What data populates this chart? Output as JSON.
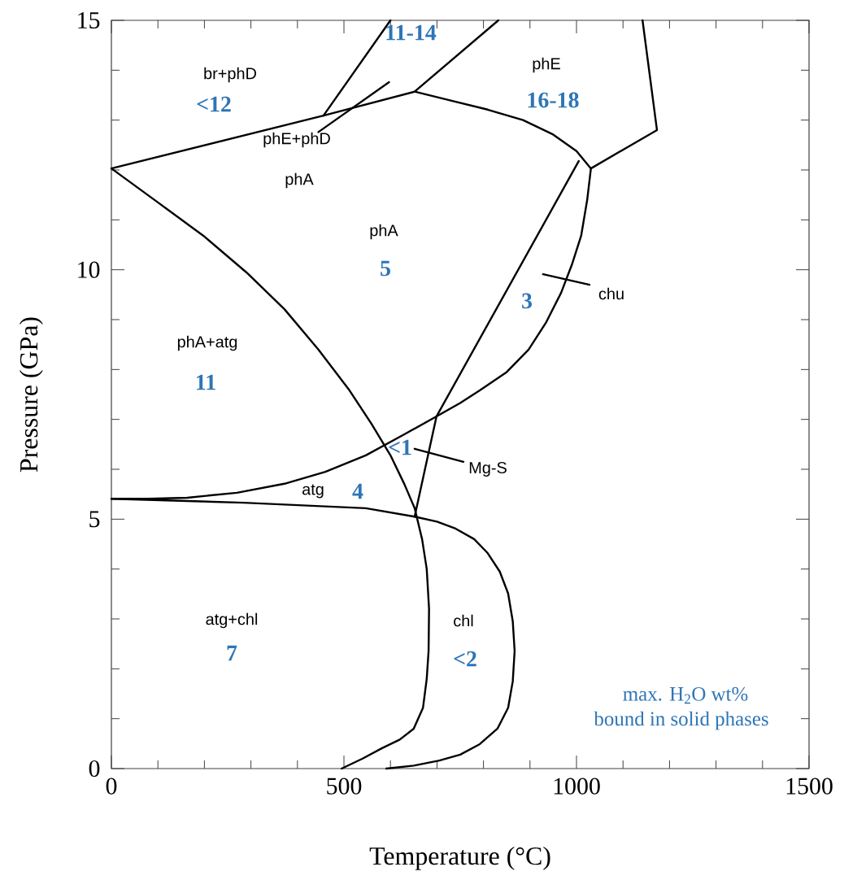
{
  "chart_data": {
    "type": "line",
    "xlabel": "Temperature (°C)",
    "ylabel": "Pressure (GPa)",
    "xlim": [
      0,
      1500
    ],
    "ylim": [
      0,
      15
    ],
    "xticks": [
      0,
      {
        "value": 100,
        "label": null
      },
      {
        "value": 200,
        "label": null
      },
      {
        "value": 300,
        "label": null
      },
      {
        "value": 400,
        "label": null
      },
      500,
      {
        "value": 600,
        "label": null
      },
      {
        "value": 700,
        "label": null
      },
      {
        "value": 800,
        "label": null
      },
      {
        "value": 900,
        "label": null
      },
      1000,
      {
        "value": 1100,
        "label": null
      },
      {
        "value": 1200,
        "label": null
      },
      {
        "value": 1300,
        "label": null
      },
      {
        "value": 1400,
        "label": null
      },
      1500
    ],
    "yticks": [
      0,
      {
        "value": 1,
        "label": null
      },
      {
        "value": 2,
        "label": null
      },
      {
        "value": 3,
        "label": null
      },
      {
        "value": 4,
        "label": null
      },
      5,
      {
        "value": 6,
        "label": null
      },
      {
        "value": 7,
        "label": null
      },
      {
        "value": 8,
        "label": null
      },
      {
        "value": 9,
        "label": null
      },
      10,
      {
        "value": 11,
        "label": null
      },
      {
        "value": 12,
        "label": null
      },
      {
        "value": 13,
        "label": null
      },
      {
        "value": 14,
        "label": null
      },
      15
    ],
    "series": [
      {
        "color": "#000000",
        "x": [
          0,
          456,
          652,
          735,
          809,
          885,
          948,
          1000,
          1031,
          1173,
          1142
        ],
        "values": [
          12.03,
          13.09,
          13.57,
          13.38,
          13.21,
          13.0,
          12.72,
          12.38,
          12.03,
          12.8,
          15
        ]
      },
      {
        "color": "#000000",
        "x": [
          456,
          600
        ],
        "values": [
          13.09,
          15
        ]
      },
      {
        "color": "#000000",
        "x": [
          652,
          832
        ],
        "values": [
          13.57,
          15
        ]
      },
      {
        "color": "#000000",
        "x": [
          1005,
          699,
          652
        ],
        "values": [
          12.18,
          7.06,
          5.05
        ]
      },
      {
        "color": "#000000",
        "x": [
          1031,
          1023,
          1010,
          990,
          967,
          935,
          897,
          850,
          792,
          750,
          699,
          630,
          547,
          460,
          372,
          270,
          163,
          80,
          0
        ],
        "values": [
          12.03,
          11.4,
          10.68,
          10.1,
          9.54,
          8.95,
          8.4,
          7.95,
          7.58,
          7.33,
          7.06,
          6.7,
          6.28,
          5.95,
          5.71,
          5.53,
          5.43,
          5.41,
          5.41
        ]
      },
      {
        "color": "#000000",
        "x": [
          0,
          100,
          198,
          290,
          372,
          445,
          512,
          560,
          600,
          630,
          652,
          668,
          678,
          683,
          682,
          678,
          670,
          650,
          620,
          582,
          540,
          495
        ],
        "values": [
          12.03,
          11.35,
          10.68,
          9.95,
          9.21,
          8.4,
          7.58,
          6.9,
          6.28,
          5.7,
          5.22,
          4.6,
          4.0,
          3.2,
          2.36,
          1.8,
          1.22,
          0.8,
          0.58,
          0.41,
          0.2,
          0
        ]
      },
      {
        "color": "#000000",
        "x": [
          0,
          285,
          547,
          652,
          700,
          740,
          780,
          809,
          835,
          853,
          863,
          867,
          863,
          853,
          830,
          792,
          750,
          705,
          650,
          591
        ],
        "values": [
          5.41,
          5.33,
          5.22,
          5.05,
          4.95,
          4.81,
          4.6,
          4.32,
          3.95,
          3.51,
          2.95,
          2.36,
          1.75,
          1.22,
          0.8,
          0.49,
          0.28,
          0.16,
          0.06,
          0
        ]
      },
      {
        "color": "#000000",
        "x": [
          445,
          597
        ],
        "values": [
          12.76,
          13.76
        ]
      },
      {
        "color": "#000000",
        "x": [
          928,
          1028
        ],
        "values": [
          9.91,
          9.7
        ]
      },
      {
        "color": "#000000",
        "x": [
          652,
          757
        ],
        "values": [
          6.41,
          6.15
        ]
      }
    ],
    "annotations": [
      "br+phD",
      "**<12**",
      "**11-14**",
      "phE",
      "**16-18**",
      "phE+phD",
      "phA",
      "phA",
      "**5**",
      "**3**",
      "chu",
      "phA+atg",
      "**11**",
      "**<1**",
      "Mg-S",
      "atg",
      "**4**",
      "atg+chl",
      "**7**",
      "chl",
      "**<2**",
      "max. H$_{2}$O wt%",
      "bound in solid phases"
    ]
  }
}
